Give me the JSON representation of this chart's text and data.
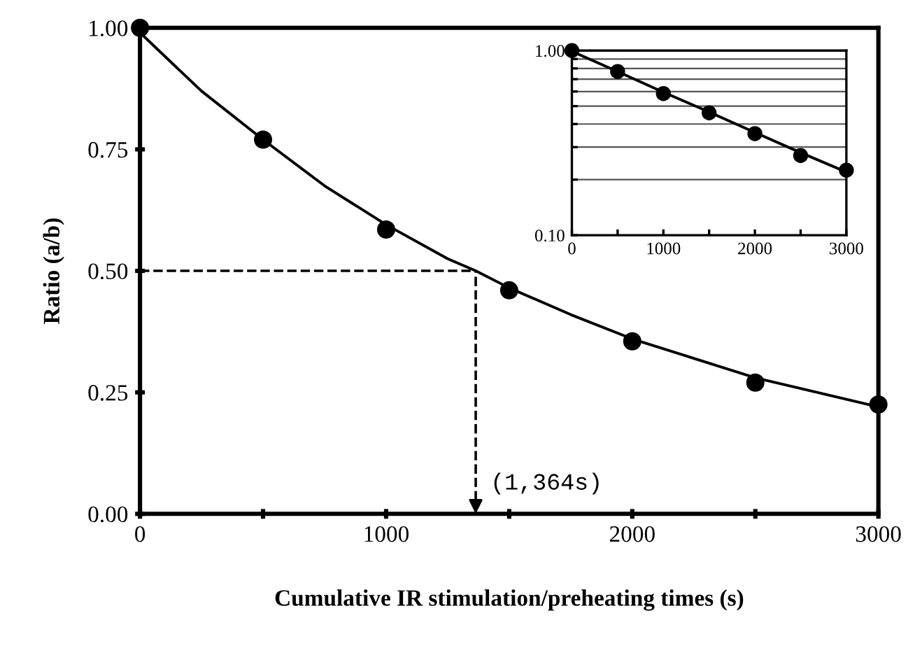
{
  "chart_data": [
    {
      "type": "scatter",
      "xlabel": "Cumulative IR stimulation/preheating times (s)",
      "ylabel": "Ratio (a/b)",
      "xlim": [
        0,
        3000
      ],
      "ylim": [
        0,
        1
      ],
      "grid": false,
      "legend": false,
      "xticks": [
        0,
        {
          "value": 500,
          "label": null
        },
        1000,
        {
          "value": 1500,
          "label": null
        },
        2000,
        {
          "value": 2500,
          "label": null
        },
        3000
      ],
      "yticks": [
        {
          "value": 0,
          "label": "0.00"
        },
        {
          "value": 0.25,
          "label": "0.25"
        },
        {
          "value": 0.5,
          "label": "0.50"
        },
        {
          "value": 0.75,
          "label": "0.75"
        },
        {
          "value": 1,
          "label": "1.00"
        }
      ],
      "series": [
        {
          "color": "#000000",
          "marker": "circle",
          "x": [
            0,
            500,
            1000,
            1500,
            2000,
            2500,
            3000
          ],
          "values": [
            1.0,
            0.77,
            0.585,
            0.46,
            0.355,
            0.27,
            0.225
          ]
        },
        {
          "type": "line",
          "color": "#000000",
          "marker": "none",
          "line_style": "solid",
          "x": [
            0,
            250,
            500,
            750,
            1000,
            1250,
            1364,
            1500,
            1750,
            2000,
            2250,
            2500,
            2750,
            3000
          ],
          "values": [
            0.99,
            0.87,
            0.77,
            0.675,
            0.595,
            0.525,
            0.5,
            0.465,
            0.41,
            0.36,
            0.32,
            0.28,
            0.25,
            0.22
          ]
        }
      ],
      "ref_lines": [
        {
          "axis": "y",
          "value": 0.5,
          "line_style": "dashed",
          "color": "#000000"
        },
        {
          "axis": "x",
          "value": 1364,
          "line_style": "dashed",
          "color": "#000000",
          "label": "(1,364s)"
        }
      ]
    },
    {
      "type": "scatter",
      "log": "y",
      "xlim": [
        0,
        3000
      ],
      "ylim": [
        0.1,
        1
      ],
      "grid": "y",
      "legend": false,
      "xticks": [
        0,
        {
          "value": 500,
          "label": null
        },
        1000,
        {
          "value": 1500,
          "label": null
        },
        2000,
        {
          "value": 2500,
          "label": null
        },
        3000
      ],
      "yticks": [
        {
          "value": 0.1,
          "label": "0.10"
        },
        {
          "value": 0.2,
          "label": null
        },
        {
          "value": 0.3,
          "label": null
        },
        {
          "value": 0.4,
          "label": null
        },
        {
          "value": 0.5,
          "label": null
        },
        {
          "value": 0.6,
          "label": null
        },
        {
          "value": 0.7,
          "label": null
        },
        {
          "value": 0.8,
          "label": null
        },
        {
          "value": 0.9,
          "label": null
        },
        {
          "value": 1,
          "label": "1.00"
        }
      ],
      "series": [
        {
          "color": "#000000",
          "marker": "circle",
          "x": [
            0,
            500,
            1000,
            1500,
            2000,
            2500,
            3000
          ],
          "values": [
            1.0,
            0.77,
            0.585,
            0.46,
            0.355,
            0.27,
            0.225
          ]
        },
        {
          "type": "line",
          "color": "#000000",
          "marker": "none",
          "line_style": "solid",
          "x": [
            0,
            500,
            1000,
            1500,
            2000,
            2500,
            3000
          ],
          "values": [
            0.99,
            0.77,
            0.595,
            0.465,
            0.36,
            0.28,
            0.22
          ]
        }
      ]
    }
  ]
}
